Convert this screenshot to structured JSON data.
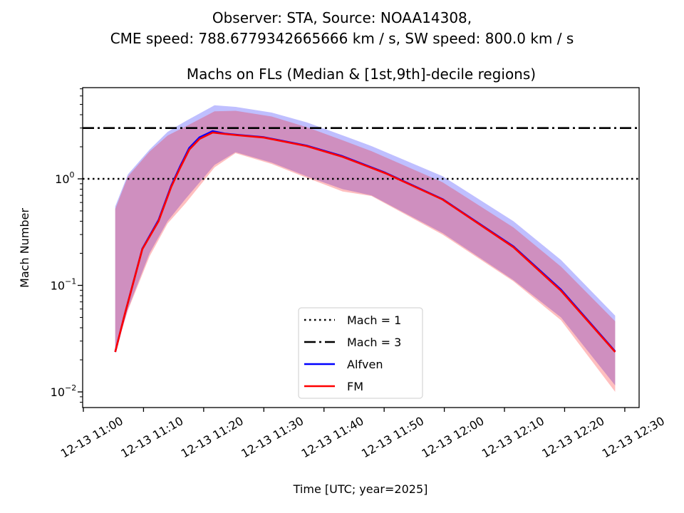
{
  "chart_data": {
    "type": "line",
    "suptitle_lines": [
      "Observer: STA, Source: NOAA14308,",
      "CME speed: 788.6779342665666 km / s, SW speed: 800.0 km / s"
    ],
    "title": "Machs on FLs (Median & [1st,9th]-decile regions)",
    "xlabel": "Time [UTC; year=2025]",
    "ylabel": "Mach Number",
    "yscale": "log",
    "ylim": [
      0.00713,
      7.18
    ],
    "xlim_minutes_after_1100": [
      0,
      92.5
    ],
    "x_ticks": [
      {
        "minute": 0,
        "label": "12-13 11:00"
      },
      {
        "minute": 10,
        "label": "12-13 11:10"
      },
      {
        "minute": 20,
        "label": "12-13 11:20"
      },
      {
        "minute": 30,
        "label": "12-13 11:30"
      },
      {
        "minute": 40,
        "label": "12-13 11:40"
      },
      {
        "minute": 50,
        "label": "12-13 11:50"
      },
      {
        "minute": 60,
        "label": "12-13 12:00"
      },
      {
        "minute": 70,
        "label": "12-13 12:10"
      },
      {
        "minute": 80,
        "label": "12-13 12:20"
      },
      {
        "minute": 90,
        "label": "12-13 12:30"
      }
    ],
    "y_ticks": [
      {
        "value": 0.01,
        "base": "10",
        "exp": "−2"
      },
      {
        "value": 0.1,
        "base": "10",
        "exp": "−1"
      },
      {
        "value": 1,
        "base": "10",
        "exp": "0"
      }
    ],
    "hlines": [
      {
        "name": "Mach = 1",
        "value": 1,
        "style": "dotted",
        "color": "#000000"
      },
      {
        "name": "Mach = 3",
        "value": 3,
        "style": "dashdot",
        "color": "#000000"
      }
    ],
    "series": [
      {
        "name": "Alfven",
        "color": "#0000ff",
        "band_color": "#0000ff",
        "x": [
          5.3,
          6.9,
          9.8,
          12.5,
          14.6,
          16.0,
          17.6,
          19.3,
          21.5,
          23.5,
          25.9,
          30.0,
          37.1,
          43.1,
          50.2,
          59.7,
          71.5,
          79.4,
          88.4
        ],
        "median": [
          0.0237,
          0.054,
          0.22,
          0.41,
          0.86,
          1.28,
          1.95,
          2.45,
          2.8,
          2.66,
          2.58,
          2.46,
          2.05,
          1.63,
          1.14,
          0.645,
          0.232,
          0.091,
          0.024
        ],
        "band_x": [
          5.3,
          7.4,
          11.0,
          14.0,
          17.0,
          21.8,
          25.3,
          31.3,
          37.2,
          43.1,
          47.9,
          59.7,
          71.5,
          79.4,
          88.4
        ],
        "band_upper": [
          0.55,
          1.1,
          1.88,
          2.76,
          3.48,
          4.9,
          4.74,
          4.19,
          3.38,
          2.56,
          2.03,
          1.06,
          0.4,
          0.173,
          0.052
        ],
        "band_lower": [
          0.0237,
          0.06,
          0.2,
          0.4,
          0.65,
          1.35,
          1.78,
          1.42,
          1.05,
          0.8,
          0.7,
          0.31,
          0.112,
          0.05,
          0.0115
        ]
      },
      {
        "name": "FM",
        "color": "#ff0000",
        "band_color": "#ff0000",
        "x": [
          5.3,
          6.9,
          9.8,
          12.5,
          14.6,
          16.0,
          17.6,
          19.3,
          21.5,
          23.5,
          25.9,
          30.0,
          37.1,
          43.1,
          50.2,
          59.7,
          71.5,
          79.4,
          88.4
        ],
        "median": [
          0.0237,
          0.054,
          0.218,
          0.4,
          0.84,
          1.24,
          1.88,
          2.37,
          2.72,
          2.64,
          2.56,
          2.44,
          2.03,
          1.61,
          1.13,
          0.64,
          0.228,
          0.089,
          0.0237
        ],
        "band_x": [
          5.3,
          7.4,
          11.0,
          14.0,
          17.0,
          21.8,
          25.3,
          31.3,
          37.2,
          43.1,
          47.9,
          59.7,
          71.5,
          79.4,
          88.4
        ],
        "band_upper": [
          0.52,
          1.05,
          1.8,
          2.55,
          3.1,
          4.3,
          4.35,
          3.85,
          3.05,
          2.3,
          1.82,
          0.93,
          0.35,
          0.15,
          0.046
        ],
        "band_lower": [
          0.0237,
          0.058,
          0.187,
          0.38,
          0.59,
          1.28,
          1.74,
          1.38,
          1.02,
          0.76,
          0.69,
          0.3,
          0.109,
          0.047,
          0.01
        ]
      }
    ],
    "legend": {
      "placement": "lower-center",
      "entries": [
        "Mach = 1",
        "Mach = 3",
        "Alfven",
        "FM"
      ]
    },
    "grid": false
  }
}
